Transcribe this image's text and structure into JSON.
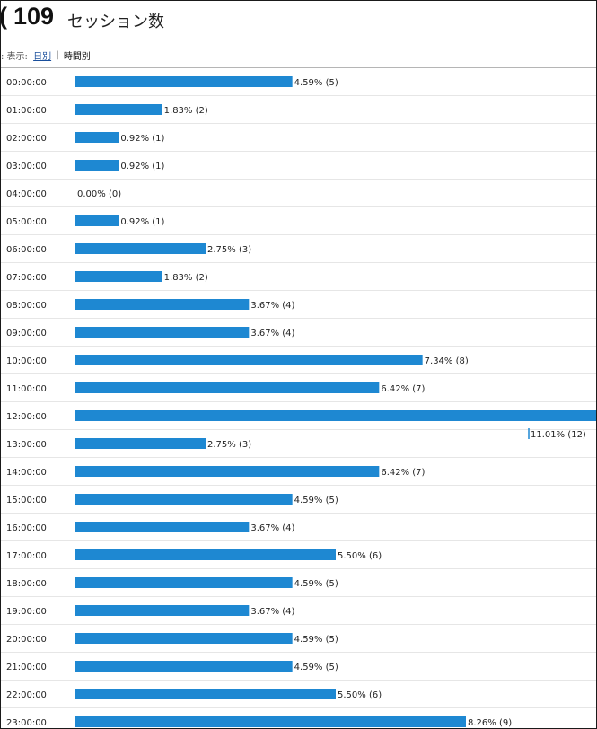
{
  "header": {
    "prefix": "(",
    "total": "109",
    "total_label": "セッション数"
  },
  "view": {
    "prefix": ": 表示:",
    "daily": "日別",
    "separator": "|",
    "hourly": "時間別"
  },
  "colors": {
    "bar": "#1e88d2"
  },
  "chart_data": {
    "type": "bar",
    "orientation": "horizontal",
    "categories": [
      "00:00:00",
      "01:00:00",
      "02:00:00",
      "03:00:00",
      "04:00:00",
      "05:00:00",
      "06:00:00",
      "07:00:00",
      "08:00:00",
      "09:00:00",
      "10:00:00",
      "11:00:00",
      "12:00:00",
      "13:00:00",
      "14:00:00",
      "15:00:00",
      "16:00:00",
      "17:00:00",
      "18:00:00",
      "19:00:00",
      "20:00:00",
      "21:00:00",
      "22:00:00",
      "23:00:00"
    ],
    "values": [
      5,
      2,
      1,
      1,
      0,
      1,
      3,
      2,
      4,
      4,
      8,
      7,
      12,
      3,
      7,
      5,
      4,
      6,
      5,
      4,
      5,
      5,
      6,
      9
    ],
    "labels": [
      "4.59% (5)",
      "1.83% (2)",
      "0.92% (1)",
      "0.92% (1)",
      "0.00% (0)",
      "0.92% (1)",
      "2.75% (3)",
      "1.83% (2)",
      "3.67% (4)",
      "3.67% (4)",
      "7.34% (8)",
      "6.42% (7)",
      "11.01% (12)",
      "2.75% (3)",
      "6.42% (7)",
      "4.59% (5)",
      "3.67% (4)",
      "5.50% (6)",
      "4.59% (5)",
      "3.67% (4)",
      "4.59% (5)",
      "4.59% (5)",
      "5.50% (6)",
      "8.26% (9)"
    ],
    "xlim": [
      0,
      12
    ],
    "grid": true,
    "title": "",
    "xlabel": "",
    "ylabel": ""
  }
}
